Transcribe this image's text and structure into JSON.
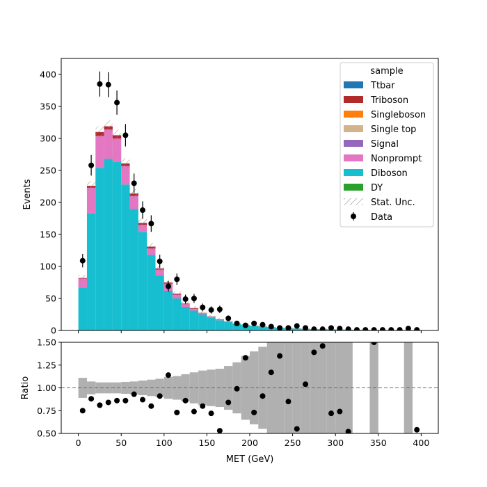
{
  "chart_data": [
    {
      "type": "bar",
      "stacked": true,
      "xlabel": "MET (GeV)",
      "ylabel": "Events",
      "xlim": [
        -20,
        420
      ],
      "ylim": [
        0,
        425
      ],
      "x_ticks": [
        0,
        50,
        100,
        150,
        200,
        250,
        300,
        350,
        400
      ],
      "y_ticks": [
        0,
        50,
        100,
        150,
        200,
        250,
        300,
        350,
        400
      ],
      "bin_edges": [
        0,
        10,
        20,
        30,
        40,
        50,
        60,
        70,
        80,
        90,
        100,
        110,
        120,
        130,
        140,
        150,
        160,
        170,
        180,
        190,
        200,
        210,
        220,
        230,
        240,
        250,
        260,
        270,
        280,
        290,
        300,
        310,
        320,
        330,
        340,
        350,
        360,
        370,
        380,
        390,
        400
      ],
      "series": [
        {
          "name": "Diboson",
          "color": "#17becf",
          "values": [
            67,
            183,
            254,
            268,
            263,
            228,
            190,
            154,
            118,
            86,
            62,
            50,
            37,
            31,
            25,
            20,
            16,
            13,
            10,
            8,
            7,
            6,
            5,
            4,
            3.5,
            3,
            2.5,
            2,
            1.8,
            1.6,
            1.4,
            1.2,
            1,
            0.9,
            0.8,
            0.7,
            0.6,
            0.5,
            0.4,
            0.3
          ]
        },
        {
          "name": "Nonprompt",
          "color": "#e377c2",
          "values": [
            14,
            40,
            50,
            46,
            37,
            29,
            20,
            11,
            10,
            9,
            11,
            6,
            4,
            3,
            2,
            1.5,
            1,
            1,
            0.5,
            0.5,
            0.4,
            0.3,
            0.2,
            0.2,
            0.1,
            0.1,
            0.1,
            0.1,
            0.1,
            0.1,
            0.1,
            0.1,
            0.1,
            0.1,
            0.1,
            0.1,
            0.1,
            0.1,
            0.1,
            0.1
          ]
        },
        {
          "name": "Triboson",
          "color": "#b22b2b",
          "values": [
            1,
            3,
            6,
            5,
            5,
            4,
            4,
            3,
            3,
            2,
            2,
            1.5,
            1,
            1,
            0.5,
            0.5,
            0.5,
            0.3,
            0.3,
            0.2,
            0.2,
            0.2,
            0.1,
            0.1,
            0.1,
            0.1,
            0.1,
            0.1,
            0.1,
            0.1,
            0.1,
            0,
            0,
            0,
            0,
            0,
            0,
            0,
            0,
            0
          ]
        }
      ],
      "data": {
        "name": "Data",
        "values": [
          109,
          258,
          385,
          384,
          356,
          305,
          230,
          188,
          167,
          108,
          69,
          80,
          49,
          50,
          36,
          32,
          33,
          19,
          11,
          8,
          11,
          9,
          6,
          4,
          4,
          7,
          4,
          2,
          2,
          4,
          3,
          2,
          1,
          1,
          1,
          1,
          1,
          1,
          3,
          1
        ]
      },
      "legend": {
        "title": "sample",
        "placement": "upper right",
        "entries": [
          {
            "label": "Ttbar",
            "color": "#1f77b4",
            "kind": "patch"
          },
          {
            "label": "Triboson",
            "color": "#b22b2b",
            "kind": "patch"
          },
          {
            "label": "Singleboson",
            "color": "#ff7f0e",
            "kind": "patch"
          },
          {
            "label": "Single top",
            "color": "#d2b48c",
            "kind": "patch"
          },
          {
            "label": "Signal",
            "color": "#9467bd",
            "kind": "patch"
          },
          {
            "label": "Nonprompt",
            "color": "#e377c2",
            "kind": "patch"
          },
          {
            "label": "Diboson",
            "color": "#17becf",
            "kind": "patch"
          },
          {
            "label": "DY",
            "color": "#2ca02c",
            "kind": "patch"
          },
          {
            "label": "Stat. Unc.",
            "color": "#888888",
            "kind": "hatch"
          },
          {
            "label": "Data",
            "color": "#000000",
            "kind": "errorbar"
          }
        ]
      }
    },
    {
      "type": "scatter",
      "xlabel": "MET (GeV)",
      "ylabel": "Ratio",
      "xlim": [
        -20,
        420
      ],
      "ylim": [
        0.5,
        1.5
      ],
      "x_ticks": [
        0,
        50,
        100,
        150,
        200,
        250,
        300,
        350,
        400
      ],
      "y_ticks": [
        "0.50",
        "0.75",
        "1.00",
        "1.25",
        "1.50"
      ],
      "reference_line": 1.0,
      "uncertainty_band": {
        "color": "#b0b0b0",
        "half_width": [
          0.11,
          0.07,
          0.06,
          0.06,
          0.06,
          0.065,
          0.07,
          0.08,
          0.09,
          0.1,
          0.12,
          0.13,
          0.15,
          0.17,
          0.19,
          0.2,
          0.21,
          0.24,
          0.28,
          0.35,
          0.4,
          0.45,
          0.5,
          0.55,
          0.6,
          0.65,
          0.7,
          0.8,
          0.9,
          0.95,
          1.0,
          1.0,
          0,
          0,
          1.0,
          0,
          0,
          0,
          1.0,
          0
        ]
      },
      "points": [
        0.75,
        0.88,
        0.81,
        0.84,
        0.86,
        0.86,
        0.93,
        0.87,
        0.8,
        0.91,
        1.14,
        0.73,
        0.86,
        0.74,
        0.8,
        0.72,
        0.53,
        0.84,
        0.99,
        1.33,
        0.73,
        0.91,
        1.17,
        1.35,
        0.85,
        0.55,
        1.04,
        1.39,
        1.46,
        0.72,
        0.74,
        0.52,
        null,
        null,
        1.5,
        null,
        null,
        null,
        null,
        0.54
      ]
    }
  ]
}
